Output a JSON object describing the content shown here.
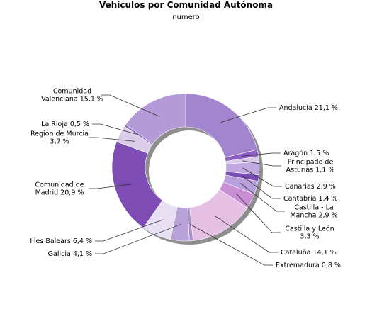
{
  "chart_data": {
    "type": "pie",
    "title": "Vehículos por Comunidad Autónoma",
    "subtitle": "numero",
    "slices": [
      {
        "label": [
          "Andalucía 21,1 %"
        ],
        "value": 21.1,
        "color": "#a385cf"
      },
      {
        "label": [
          "Aragón 1,5 %"
        ],
        "value": 1.5,
        "color": "#8e5ec4"
      },
      {
        "label": [
          "Principado de",
          "Asturias 1,1 %"
        ],
        "value": 1.1,
        "color": "#d6c8ea"
      },
      {
        "label": [
          "Canarias 2,9 %"
        ],
        "value": 2.9,
        "color": "#c0a9e0"
      },
      {
        "label": [
          "Cantabria 1,4 %"
        ],
        "value": 1.4,
        "color": "#7a4cb5"
      },
      {
        "label": [
          "Castilla - La",
          "Mancha 2,9 %"
        ],
        "value": 2.9,
        "color": "#b8a0dc"
      },
      {
        "label": [
          "Castilla y León",
          "3,3 %"
        ],
        "value": 3.3,
        "color": "#c98fd4"
      },
      {
        "label": [
          "Cataluña 14,1 %"
        ],
        "value": 14.1,
        "color": "#e6bfe4"
      },
      {
        "label": [
          "Extremadura 0,8 %"
        ],
        "value": 0.8,
        "color": "#a690cc"
      },
      {
        "label": [
          "Galicia 4,1 %"
        ],
        "value": 4.1,
        "color": "#b9a2d8"
      },
      {
        "label": [
          "Illes Balears 6,4 %"
        ],
        "value": 6.4,
        "color": "#e8e0f2"
      },
      {
        "label": [
          "Comunidad de",
          "Madrid 20,9 %"
        ],
        "value": 20.9,
        "color": "#7d4db3"
      },
      {
        "label": [
          "Región de Murcia",
          "3,7 %"
        ],
        "value": 3.7,
        "color": "#dbcdea"
      },
      {
        "label": [
          "La Rioja 0,5 %"
        ],
        "value": 0.5,
        "color": "#8f6fc0"
      },
      {
        "label": [
          "Comunidad",
          "Valenciana 15,1 %"
        ],
        "value": 15.1,
        "color": "#b49ad8"
      }
    ]
  }
}
